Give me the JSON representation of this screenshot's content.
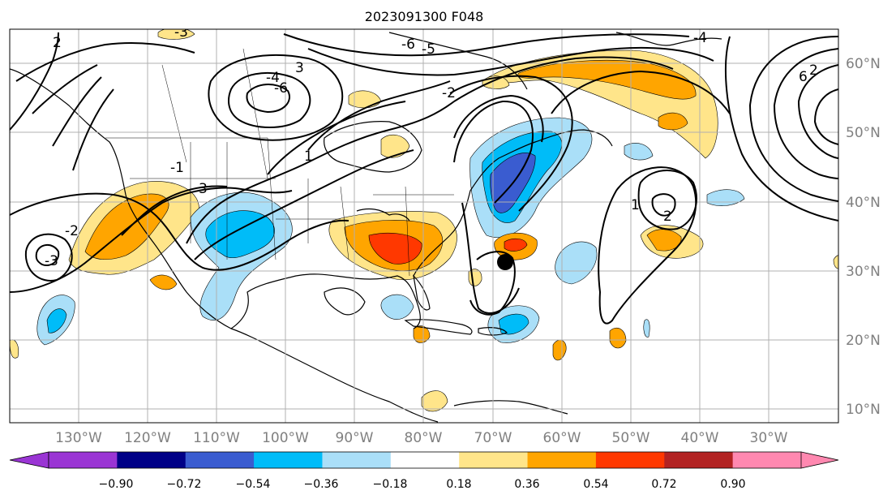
{
  "title": "2023091300 F048",
  "map": {
    "grid": true,
    "lon_labels": [
      "130°W",
      "120°W",
      "110°W",
      "100°W",
      "90°W",
      "80°W",
      "70°W",
      "60°W",
      "50°W",
      "40°W",
      "30°W"
    ],
    "lat_labels": [
      "60°N",
      "50°N",
      "40°N",
      "30°N",
      "20°N",
      "10°N"
    ],
    "storm_marker": {
      "name": "storm-center-marker",
      "lon": -68.3,
      "lat": 31.2
    },
    "contour_labels": [
      "3",
      "-4",
      "-6",
      "-2",
      "-3",
      "-1",
      "1",
      "2",
      "3",
      "1",
      "-2",
      "-6",
      "-5",
      "-4",
      "6",
      "2",
      "2",
      "-3"
    ]
  },
  "colorbar": {
    "tick_labels": [
      "−0.90",
      "−0.72",
      "−0.54",
      "−0.36",
      "−0.18",
      "0.18",
      "0.36",
      "0.54",
      "0.72",
      "0.90"
    ],
    "under_color": "#9a35d4",
    "bin_colors": [
      "#000087",
      "#3a5cd0",
      "#00bcf8",
      "#aadff8",
      "#ffffff",
      "#ffe58a",
      "#ffa500",
      "#ff3800",
      "#b22222"
    ],
    "over_color": "#ff88b0"
  },
  "colors": {
    "contour": "#000000",
    "grid": "#b0b0b0",
    "coast": "#000000",
    "axis_label": "#808080"
  }
}
